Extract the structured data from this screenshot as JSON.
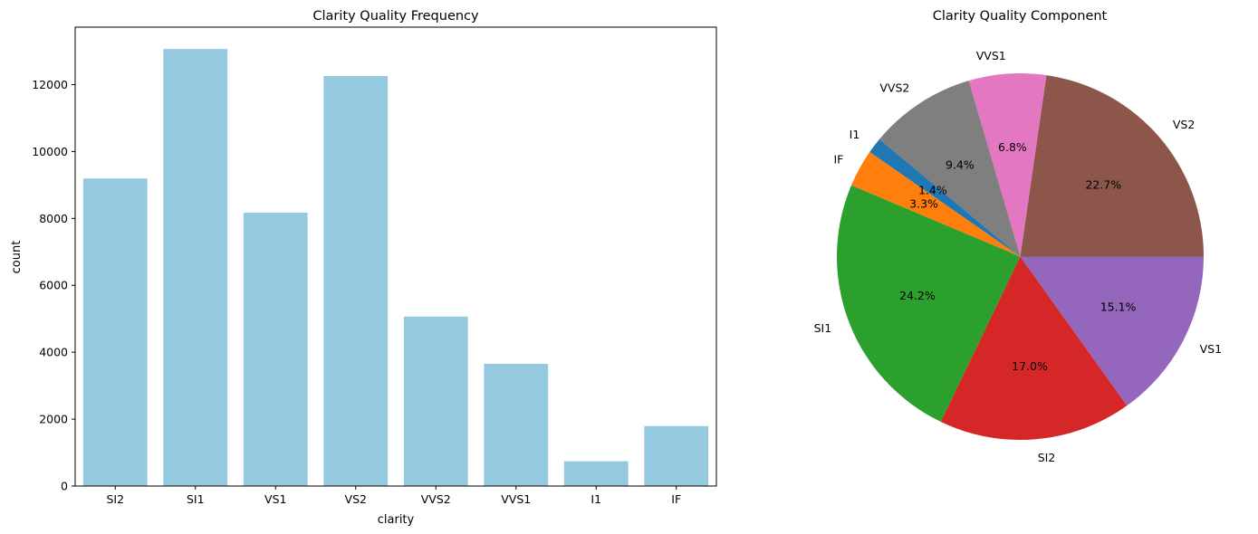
{
  "chart_data": [
    {
      "type": "bar",
      "title": "Clarity Quality Frequency",
      "xlabel": "clarity",
      "ylabel": "count",
      "categories": [
        "SI2",
        "SI1",
        "VS1",
        "VS2",
        "VVS2",
        "VVS1",
        "I1",
        "IF"
      ],
      "values": [
        9194,
        13065,
        8171,
        12258,
        5066,
        3655,
        741,
        1790
      ],
      "ylim": [
        0,
        13718
      ],
      "yticks": [
        0,
        2000,
        4000,
        6000,
        8000,
        10000,
        12000
      ],
      "bar_color": "#95c9df",
      "grid": false
    },
    {
      "type": "pie",
      "title": "Clarity Quality Component",
      "slices": [
        {
          "label": "VS2",
          "value": 22.7,
          "pct_label": "22.7%",
          "color": "#8c564b"
        },
        {
          "label": "VVS1",
          "value": 6.8,
          "pct_label": "6.8%",
          "color": "#e377c2"
        },
        {
          "label": "VVS2",
          "value": 9.4,
          "pct_label": "9.4%",
          "color": "#7f7f7f"
        },
        {
          "label": "I1",
          "value": 1.4,
          "pct_label": "1.4%",
          "color": "#1f77b4"
        },
        {
          "label": "IF",
          "value": 3.3,
          "pct_label": "3.3%",
          "color": "#ff7f0e"
        },
        {
          "label": "SI1",
          "value": 24.2,
          "pct_label": "24.2%",
          "color": "#2ca02c"
        },
        {
          "label": "SI2",
          "value": 17.0,
          "pct_label": "17.0%",
          "color": "#d62728"
        },
        {
          "label": "VS1",
          "value": 15.1,
          "pct_label": "15.1%",
          "color": "#9467bd"
        }
      ]
    }
  ]
}
